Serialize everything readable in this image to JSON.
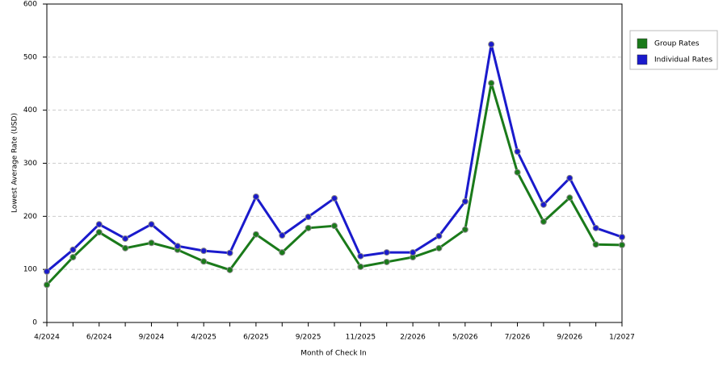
{
  "chart_data": {
    "type": "line",
    "x_label": "Month of Check In",
    "y_label": "Lowest Average Rate (USD)",
    "categories": [
      "4/2024",
      null,
      "6/2024",
      null,
      "9/2024",
      null,
      "4/2025",
      null,
      "6/2025",
      null,
      "9/2025",
      null,
      "11/2025",
      null,
      "2/2026",
      null,
      "5/2026",
      null,
      "7/2026",
      null,
      "9/2026",
      null,
      "1/2027"
    ],
    "series": [
      {
        "name": "Group Rates",
        "color": "#1a7a1a",
        "values": [
          71,
          123,
          170,
          140,
          150,
          137,
          115,
          99,
          166,
          132,
          178,
          182,
          105,
          114,
          123,
          140,
          175,
          451,
          283,
          190,
          235,
          147,
          146
        ]
      },
      {
        "name": "Individual Rates",
        "color": "#1a1acc",
        "values": [
          96,
          137,
          185,
          158,
          185,
          144,
          135,
          131,
          237,
          164,
          199,
          234,
          125,
          132,
          132,
          163,
          228,
          524,
          322,
          222,
          272,
          178,
          161
        ]
      }
    ],
    "ylim": [
      0,
      600
    ],
    "yticks": [
      0,
      100,
      200,
      300,
      400,
      500,
      600
    ],
    "grid": true,
    "legend": "right"
  }
}
